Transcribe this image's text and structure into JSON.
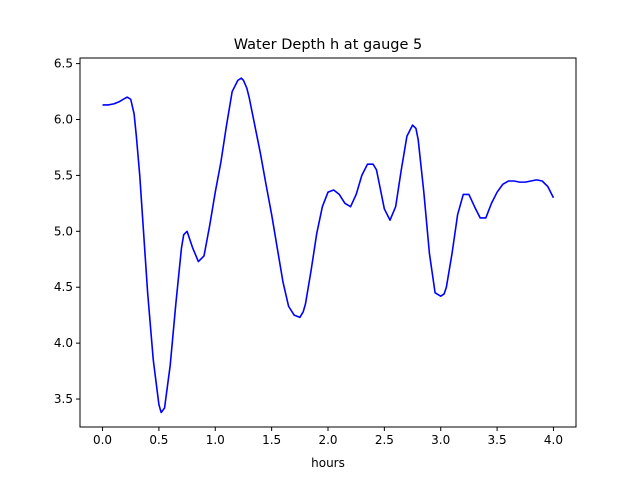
{
  "chart_data": {
    "type": "line",
    "title": "Water Depth h at gauge 5",
    "xlabel": "hours",
    "ylabel": "",
    "xlim": [
      -0.2,
      4.2
    ],
    "ylim": [
      3.25,
      6.55
    ],
    "grid": false,
    "legend": "none",
    "x_ticks": [
      0.0,
      0.5,
      1.0,
      1.5,
      2.0,
      2.5,
      3.0,
      3.5,
      4.0
    ],
    "x_tick_labels": [
      "0.0",
      "0.5",
      "1.0",
      "1.5",
      "2.0",
      "2.5",
      "3.0",
      "3.5",
      "4.0"
    ],
    "y_ticks": [
      3.5,
      4.0,
      4.5,
      5.0,
      5.5,
      6.0,
      6.5
    ],
    "y_tick_labels": [
      "3.5",
      "4.0",
      "4.5",
      "5.0",
      "5.5",
      "6.0",
      "6.5"
    ],
    "series": [
      {
        "color": "#0000ff",
        "x": [
          0.0,
          0.05,
          0.1,
          0.15,
          0.2,
          0.22,
          0.25,
          0.28,
          0.3,
          0.33,
          0.36,
          0.4,
          0.45,
          0.5,
          0.52,
          0.55,
          0.6,
          0.65,
          0.7,
          0.72,
          0.75,
          0.8,
          0.85,
          0.9,
          0.95,
          1.0,
          1.05,
          1.1,
          1.15,
          1.2,
          1.23,
          1.25,
          1.28,
          1.3,
          1.35,
          1.4,
          1.45,
          1.5,
          1.55,
          1.6,
          1.65,
          1.7,
          1.75,
          1.78,
          1.8,
          1.85,
          1.9,
          1.95,
          2.0,
          2.05,
          2.1,
          2.15,
          2.2,
          2.25,
          2.3,
          2.35,
          2.4,
          2.43,
          2.45,
          2.5,
          2.55,
          2.6,
          2.65,
          2.7,
          2.75,
          2.78,
          2.8,
          2.85,
          2.9,
          2.95,
          3.0,
          3.03,
          3.05,
          3.1,
          3.15,
          3.2,
          3.25,
          3.3,
          3.35,
          3.4,
          3.45,
          3.5,
          3.55,
          3.6,
          3.65,
          3.7,
          3.75,
          3.8,
          3.85,
          3.9,
          3.95,
          4.0
        ],
        "y": [
          6.13,
          6.13,
          6.14,
          6.16,
          6.19,
          6.2,
          6.18,
          6.05,
          5.85,
          5.5,
          5.05,
          4.45,
          3.85,
          3.45,
          3.38,
          3.42,
          3.8,
          4.35,
          4.85,
          4.97,
          5.0,
          4.85,
          4.73,
          4.78,
          5.05,
          5.35,
          5.62,
          5.95,
          6.25,
          6.35,
          6.37,
          6.35,
          6.28,
          6.2,
          5.95,
          5.7,
          5.42,
          5.15,
          4.85,
          4.55,
          4.33,
          4.25,
          4.23,
          4.28,
          4.35,
          4.65,
          4.98,
          5.22,
          5.35,
          5.37,
          5.33,
          5.25,
          5.22,
          5.33,
          5.5,
          5.6,
          5.6,
          5.55,
          5.45,
          5.2,
          5.1,
          5.22,
          5.55,
          5.85,
          5.95,
          5.92,
          5.82,
          5.35,
          4.8,
          4.45,
          4.42,
          4.44,
          4.5,
          4.8,
          5.15,
          5.33,
          5.33,
          5.22,
          5.12,
          5.12,
          5.25,
          5.35,
          5.42,
          5.45,
          5.45,
          5.44,
          5.44,
          5.45,
          5.46,
          5.45,
          5.4,
          5.3
        ]
      }
    ]
  }
}
